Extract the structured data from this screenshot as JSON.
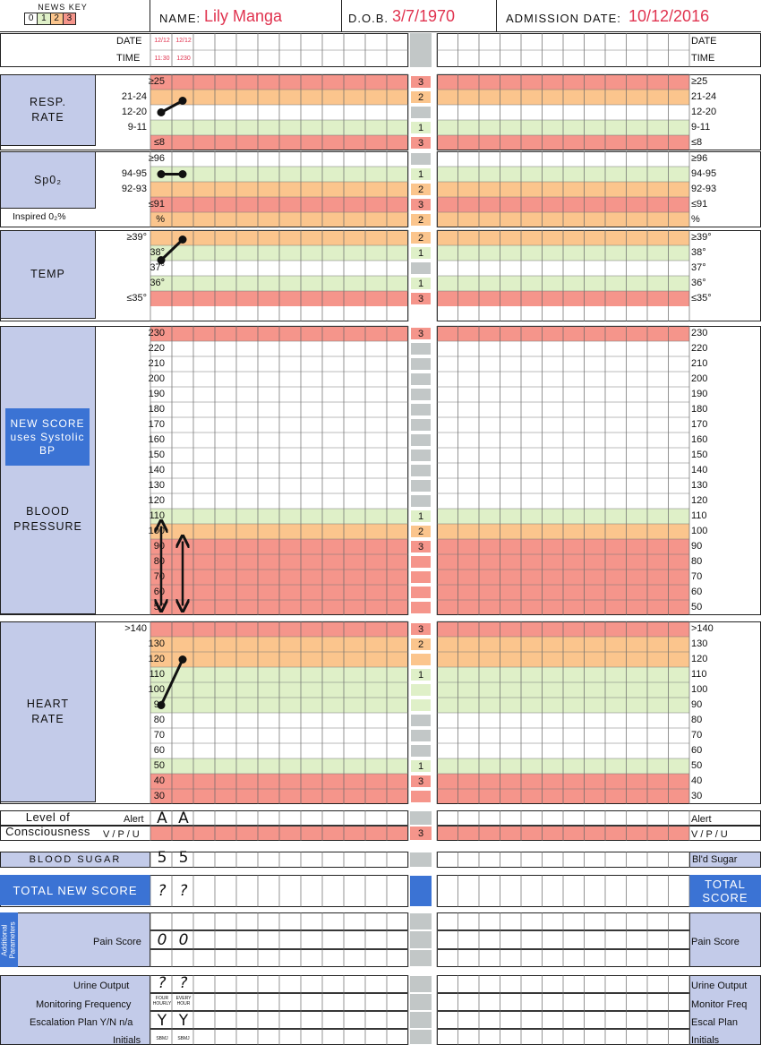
{
  "header": {
    "news_key": "NEWS KEY",
    "key_levels": [
      "0",
      "1",
      "2",
      "3"
    ],
    "name_label": "NAME:",
    "name_value": "Lily Manga",
    "dob_label": "D.O.B.",
    "dob_value": "3/7/1970",
    "admission_label": "ADMISSION DATE:",
    "admission_value": "10/12/2016"
  },
  "colors": {
    "green": "#dff0c8",
    "orange": "#fbc58d",
    "red": "#f5958b",
    "white": "#ffffff",
    "label_blue": "#c3cbe9",
    "accent_blue": "#3b73d4",
    "grey": "#c2c7c7",
    "handwriting_red": "#e0334f"
  },
  "date_time": {
    "date_label": "DATE",
    "time_label": "TIME",
    "dates": [
      "12/12",
      "12/12"
    ],
    "times": [
      "11:30",
      "1230"
    ]
  },
  "sections": {
    "resp": {
      "title": "RESP.\nRATE"
    },
    "spo2": {
      "title": "Sp0₂",
      "inspired_label": "Inspired 0₂%"
    },
    "temp": {
      "title": "TEMP"
    },
    "bp": {
      "title": "BLOOD\nPRESSURE",
      "new_score_note": "NEW SCORE\nuses Systolic\nBP"
    },
    "hr": {
      "title": "HEART\nRATE"
    },
    "loc": {
      "title": "Level of\nConsciousness",
      "right_rows": [
        "Alert",
        "V / P / U"
      ]
    },
    "sugar": {
      "title": "BLOOD SUGAR",
      "right_label": "Bl'd Sugar"
    },
    "total": {
      "title": "TOTAL NEW SCORE",
      "right_label": "TOTAL\nSCORE"
    },
    "additional": {
      "side_title": "Additional\nParameters",
      "pain_label": "Pain Score"
    },
    "bottom": {
      "left_rows": [
        "Urine Output",
        "Monitoring Frequency",
        "Escalation Plan Y/N n/a",
        "Initials"
      ],
      "right_rows": [
        "Urine Output",
        "Monitor Freq",
        "Escal Plan",
        "Initials"
      ]
    }
  },
  "observations": {
    "resp_rate": [
      "12-20",
      "21-24"
    ],
    "spo2": [
      "94-95",
      "94-95"
    ],
    "temp": [
      "38°",
      "≥39°"
    ],
    "bp_ranges": [
      [
        100,
        50
      ],
      [
        90,
        50
      ]
    ],
    "heart_rate": [
      90,
      120
    ],
    "consciousness": [
      "A",
      "A"
    ],
    "blood_sugar": [
      "5",
      "5"
    ],
    "total_score": [
      "?",
      "?"
    ],
    "pain_score": [
      "0",
      "0"
    ],
    "urine_output": [
      "?",
      "?"
    ],
    "monitoring_frequency": [
      "FOUR HOURLY",
      "EVERY HOUR"
    ],
    "escalation_plan": [
      "Y",
      "Y"
    ],
    "initials": [
      "SBMJ",
      "SBMJ"
    ]
  },
  "rows": [
    {
      "key": "resp",
      "label": "≥25",
      "score": "3",
      "color": "red"
    },
    {
      "key": "resp",
      "label": "21-24",
      "score": "2",
      "color": "orange"
    },
    {
      "key": "resp",
      "label": "12-20",
      "score": "",
      "color": "white"
    },
    {
      "key": "resp",
      "label": "9-11",
      "score": "1",
      "color": "green"
    },
    {
      "key": "resp",
      "label": "≤8",
      "score": "3",
      "color": "red"
    },
    {
      "key": "spo2",
      "label": "≥96",
      "score": "",
      "color": "white"
    },
    {
      "key": "spo2",
      "label": "94-95",
      "score": "1",
      "color": "green"
    },
    {
      "key": "spo2",
      "label": "92-93",
      "score": "2",
      "color": "orange"
    },
    {
      "key": "spo2",
      "label": "≤91",
      "score": "3",
      "color": "red"
    },
    {
      "key": "spo2",
      "label": "%",
      "score": "2",
      "color": "orange"
    },
    {
      "key": "temp",
      "label": "≥39°",
      "score": "2",
      "color": "orange"
    },
    {
      "key": "temp",
      "label": "38°",
      "score": "1",
      "color": "green"
    },
    {
      "key": "temp",
      "label": "37°",
      "score": "",
      "color": "white"
    },
    {
      "key": "temp",
      "label": "36°",
      "score": "1",
      "color": "green"
    },
    {
      "key": "temp",
      "label": "≤35°",
      "score": "3",
      "color": "red"
    },
    {
      "key": "bp",
      "label": "230",
      "score": "3",
      "color": "red"
    },
    {
      "key": "bp",
      "label": "220",
      "score": "",
      "color": "white"
    },
    {
      "key": "bp",
      "label": "210",
      "score": "",
      "color": "white"
    },
    {
      "key": "bp",
      "label": "200",
      "score": "",
      "color": "white"
    },
    {
      "key": "bp",
      "label": "190",
      "score": "",
      "color": "white"
    },
    {
      "key": "bp",
      "label": "180",
      "score": "",
      "color": "white"
    },
    {
      "key": "bp",
      "label": "170",
      "score": "",
      "color": "white"
    },
    {
      "key": "bp",
      "label": "160",
      "score": "",
      "color": "white"
    },
    {
      "key": "bp",
      "label": "150",
      "score": "",
      "color": "white"
    },
    {
      "key": "bp",
      "label": "140",
      "score": "",
      "color": "white"
    },
    {
      "key": "bp",
      "label": "130",
      "score": "",
      "color": "white"
    },
    {
      "key": "bp",
      "label": "120",
      "score": "",
      "color": "white"
    },
    {
      "key": "bp",
      "label": "110",
      "score": "1",
      "color": "green"
    },
    {
      "key": "bp",
      "label": "100",
      "score": "2",
      "color": "orange"
    },
    {
      "key": "bp",
      "label": "90",
      "score": "3",
      "color": "red"
    },
    {
      "key": "bp",
      "label": "80",
      "score": "",
      "color": "red"
    },
    {
      "key": "bp",
      "label": "70",
      "score": "",
      "color": "red"
    },
    {
      "key": "bp",
      "label": "60",
      "score": "",
      "color": "red"
    },
    {
      "key": "bp",
      "label": "50",
      "score": "",
      "color": "red"
    },
    {
      "key": "hr",
      "label": ">140",
      "score": "3",
      "color": "red"
    },
    {
      "key": "hr",
      "label": "130",
      "score": "2",
      "color": "orange"
    },
    {
      "key": "hr",
      "label": "120",
      "score": "",
      "color": "orange"
    },
    {
      "key": "hr",
      "label": "110",
      "score": "1",
      "color": "green"
    },
    {
      "key": "hr",
      "label": "100",
      "score": "",
      "color": "green"
    },
    {
      "key": "hr",
      "label": "90",
      "score": "",
      "color": "green"
    },
    {
      "key": "hr",
      "label": "80",
      "score": "",
      "color": "white"
    },
    {
      "key": "hr",
      "label": "70",
      "score": "",
      "color": "white"
    },
    {
      "key": "hr",
      "label": "60",
      "score": "",
      "color": "white"
    },
    {
      "key": "hr",
      "label": "50",
      "score": "1",
      "color": "green"
    },
    {
      "key": "hr",
      "label": "40",
      "score": "3",
      "color": "red"
    },
    {
      "key": "hr",
      "label": "30",
      "score": "",
      "color": "red"
    }
  ]
}
